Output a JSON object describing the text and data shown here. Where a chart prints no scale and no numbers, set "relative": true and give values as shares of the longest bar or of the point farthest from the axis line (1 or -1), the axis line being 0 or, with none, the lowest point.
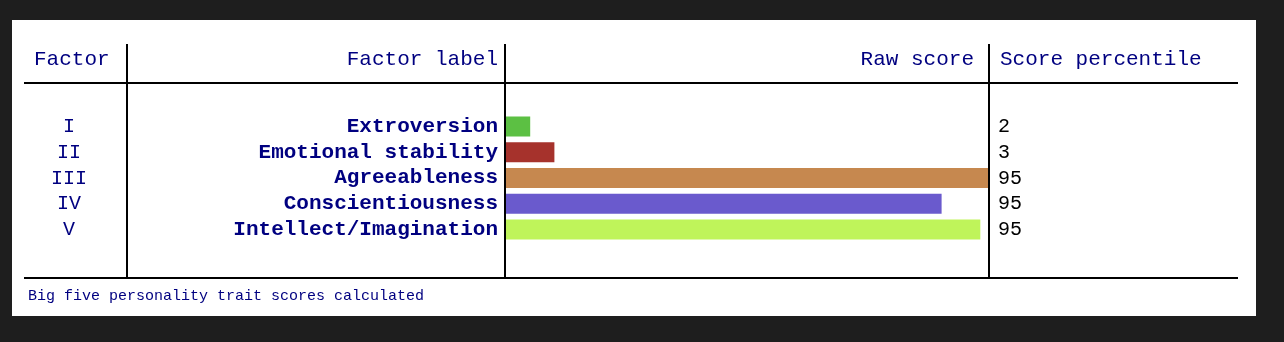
{
  "chart_data": {
    "type": "bar",
    "orientation": "horizontal",
    "relative": true,
    "categories": [
      "Extroversion",
      "Emotional stability",
      "Agreeableness",
      "Conscientiousness",
      "Intellect/Imagination"
    ],
    "values": [
      0.05,
      0.1,
      1,
      0.9,
      0.98
    ],
    "colors": [
      "#5cc043",
      "#a6322c",
      "#c6884f",
      "#6a5acd",
      "#bff45a"
    ],
    "annotations": [
      "Factor",
      "Factor label",
      "Raw score",
      "Score percentile",
      "I",
      "II",
      "III",
      "IV",
      "V",
      "2",
      "3",
      "95",
      "95",
      "95",
      "Big five personality trait scores calculated"
    ],
    "legend": false
  }
}
